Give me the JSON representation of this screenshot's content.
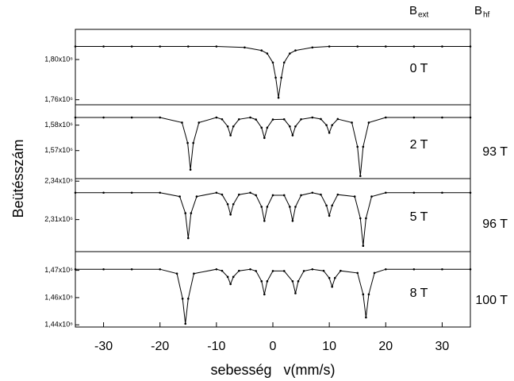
{
  "header": {
    "ext": {
      "symbol": "B",
      "subscript": "ext"
    },
    "hf": {
      "symbol": "B",
      "subscript": "hf"
    }
  },
  "ylabel": "Beütésszám",
  "xlabel": "sebesség   v(mm/s)",
  "chart_data": [
    {
      "type": "line",
      "field_label": "0 T",
      "color": "#000000",
      "x": [
        -35,
        -30,
        -25,
        -20,
        -15,
        -10,
        -5,
        -2,
        -1,
        0,
        0.5,
        1,
        1.5,
        2,
        3,
        4,
        7,
        10,
        15,
        20,
        25,
        30,
        35
      ],
      "values": [
        1813000,
        1813000,
        1813000,
        1813000,
        1813000,
        1813000,
        1812000,
        1809000,
        1806000,
        1797000,
        1782000,
        1762000,
        1782000,
        1797000,
        1806000,
        1809000,
        1812000,
        1813000,
        1813000,
        1813000,
        1813000,
        1813000,
        1813000
      ],
      "xlim": [
        -35,
        35
      ],
      "ylim": [
        1755000,
        1830000
      ],
      "yticks": [
        {
          "value": 1760000,
          "label": "1,76x10⁶"
        },
        {
          "value": 1800000,
          "label": "1,80x10⁶"
        }
      ]
    },
    {
      "type": "line",
      "field_label": "2 T",
      "hyperfine_field": "93 T",
      "color": "#000000",
      "x": [
        -35,
        -30,
        -25,
        -20,
        -16.1,
        -15.1,
        -14.6,
        -14.1,
        -13.1,
        -10,
        -9,
        -8,
        -7.5,
        -7,
        -6,
        -4,
        -3,
        -2,
        -1.5,
        -1,
        0,
        2,
        3,
        3.5,
        4,
        5,
        7,
        8.5,
        9.5,
        10,
        10.5,
        11.5,
        14,
        15,
        15.5,
        16,
        17,
        20,
        25,
        30,
        35
      ],
      "values": [
        1583000,
        1583000,
        1583000,
        1583000,
        1581000,
        1573000,
        1562500,
        1573000,
        1581000,
        1583000,
        1582300,
        1579500,
        1576000,
        1579500,
        1582300,
        1583000,
        1582200,
        1579000,
        1575000,
        1579000,
        1582200,
        1582300,
        1579500,
        1576000,
        1579500,
        1582300,
        1583000,
        1582400,
        1580000,
        1577000,
        1580000,
        1582400,
        1581000,
        1571500,
        1560000,
        1571500,
        1581000,
        1583000,
        1583000,
        1583000,
        1583000
      ],
      "xlim": [
        -35,
        35
      ],
      "ylim": [
        1559000,
        1588000
      ],
      "yticks": [
        {
          "value": 1570000,
          "label": "1,57x10⁶"
        },
        {
          "value": 1580000,
          "label": "1,58x10⁶"
        }
      ]
    },
    {
      "type": "line",
      "field_label": "5 T",
      "hyperfine_field": "96 T",
      "color": "#000000",
      "x": [
        -35,
        -30,
        -25,
        -20,
        -16.5,
        -15.5,
        -15,
        -14.5,
        -13.5,
        -10,
        -9,
        -8,
        -7.5,
        -7,
        -6,
        -4,
        -3,
        -2,
        -1.5,
        -1,
        0,
        2,
        3,
        3.5,
        4,
        5,
        7,
        8.5,
        9.5,
        10,
        10.5,
        11.5,
        14.5,
        15.5,
        16,
        16.5,
        17.5,
        20,
        25,
        30,
        35
      ],
      "values": [
        2331000,
        2331000,
        2331000,
        2331000,
        2328000,
        2315000,
        2295500,
        2315000,
        2328000,
        2331000,
        2329500,
        2322000,
        2314000,
        2322000,
        2329500,
        2331000,
        2329000,
        2320000,
        2309000,
        2320000,
        2329000,
        2329000,
        2320000,
        2309000,
        2320000,
        2329000,
        2331000,
        2329500,
        2321000,
        2313000,
        2321000,
        2329500,
        2328000,
        2311000,
        2289500,
        2311000,
        2328000,
        2331000,
        2331000,
        2331000,
        2331000
      ],
      "xlim": [
        -35,
        35
      ],
      "ylim": [
        2285000,
        2342000
      ],
      "yticks": [
        {
          "value": 2310000,
          "label": "2,31x10⁶"
        },
        {
          "value": 2340000,
          "label": "2,34x10⁶"
        }
      ]
    },
    {
      "type": "line",
      "field_label": "8 T",
      "hyperfine_field": "100 T",
      "color": "#000000",
      "x": [
        -35,
        -30,
        -25,
        -20,
        -17,
        -16,
        -15.5,
        -15,
        -14,
        -10,
        -9,
        -8,
        -7.5,
        -7,
        -6,
        -4,
        -3,
        -2,
        -1.5,
        -1,
        0,
        2,
        3.5,
        4,
        4.5,
        5.5,
        7,
        9,
        10,
        10.5,
        11,
        12,
        15,
        16,
        16.5,
        17,
        18,
        20,
        25,
        30,
        35
      ],
      "values": [
        1470500,
        1470500,
        1470500,
        1470500,
        1468500,
        1457000,
        1445500,
        1457000,
        1468500,
        1470500,
        1469800,
        1467000,
        1463700,
        1467000,
        1469800,
        1470500,
        1469700,
        1465000,
        1459000,
        1465000,
        1469700,
        1469700,
        1465000,
        1459500,
        1465000,
        1469700,
        1470500,
        1469800,
        1466500,
        1462500,
        1466500,
        1469800,
        1468800,
        1459000,
        1448400,
        1459000,
        1468800,
        1470500,
        1470500,
        1470500,
        1470500
      ],
      "xlim": [
        -35,
        35
      ],
      "ylim": [
        1444000,
        1478600
      ],
      "yticks": [
        {
          "value": 1445000,
          "label": "1,44x10⁶"
        },
        {
          "value": 1457500,
          "label": "1,46x10⁶"
        },
        {
          "value": 1470000,
          "label": "1,47x10⁶"
        }
      ],
      "xticks": [
        -30,
        -20,
        -10,
        0,
        10,
        20,
        30
      ]
    }
  ]
}
